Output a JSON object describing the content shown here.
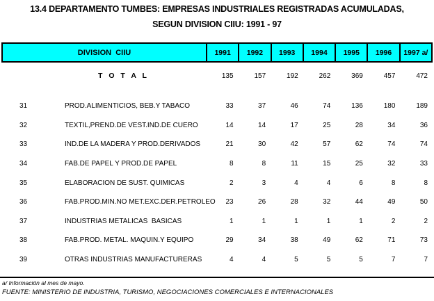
{
  "title": {
    "line1": "13.4 DEPARTAMENTO TUMBES: EMPRESAS INDUSTRIALES REGISTRADAS ACUMULADAS,",
    "line2": "SEGUN DIVISION CIIU: 1991 - 97"
  },
  "table": {
    "header": {
      "division_label": "DIVISION  CIIU",
      "year_columns": [
        "1991",
        "1992",
        "1993",
        "1994",
        "1995",
        "1996",
        "1997 a/"
      ]
    },
    "total_row": {
      "label": "T O T A L",
      "values": [
        135,
        157,
        192,
        262,
        369,
        457,
        472
      ]
    },
    "rows": [
      {
        "code": "31",
        "label": "PROD.ALIMENTICIOS, BEB.Y TABACO",
        "values": [
          33,
          37,
          46,
          74,
          136,
          180,
          189
        ]
      },
      {
        "code": "32",
        "label": "TEXTIL,PREND.DE VEST.IND.DE CUERO",
        "values": [
          14,
          14,
          17,
          25,
          28,
          34,
          36
        ]
      },
      {
        "code": "33",
        "label": "IND.DE LA MADERA Y PROD.DERIVADOS",
        "values": [
          21,
          30,
          42,
          57,
          62,
          74,
          74
        ]
      },
      {
        "code": "34",
        "label": "FAB.DE PAPEL Y PROD.DE PAPEL",
        "values": [
          8,
          8,
          11,
          15,
          25,
          32,
          33
        ]
      },
      {
        "code": "35",
        "label": "ELABORACION DE SUST. QUIMICAS",
        "values": [
          2,
          3,
          4,
          4,
          6,
          8,
          8
        ]
      },
      {
        "code": "36",
        "label": "FAB.PROD.MIN.NO MET.EXC.DER.PETROLEO",
        "values": [
          23,
          26,
          28,
          32,
          44,
          49,
          50
        ]
      },
      {
        "code": "37",
        "label": "INDUSTRIAS METALICAS  BASICAS",
        "values": [
          1,
          1,
          1,
          1,
          1,
          2,
          2
        ]
      },
      {
        "code": "38",
        "label": "FAB.PROD. METAL. MAQUIN.Y EQUIPO",
        "values": [
          29,
          34,
          38,
          49,
          62,
          71,
          73
        ]
      },
      {
        "code": "39",
        "label": "OTRAS INDUSTRIAS MANUFACTURERAS",
        "values": [
          4,
          4,
          5,
          5,
          5,
          7,
          7
        ]
      }
    ]
  },
  "footnotes": {
    "note": "a/ Información al mes de mayo.",
    "source": "FUENTE: MINISTERIO DE INDUSTRIA, TURISMO, NEGOCIACIONES COMERCIALES E INTERNACIONALES"
  },
  "colors": {
    "header_bg": "#00FFFF",
    "border": "#000000",
    "text": "#000000",
    "background": "#FFFFFF"
  }
}
